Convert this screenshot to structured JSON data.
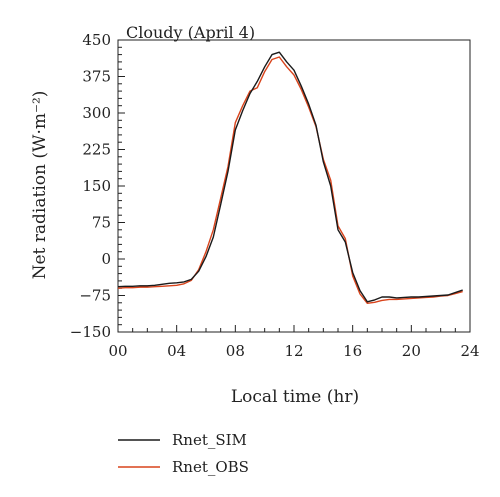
{
  "chart_data": {
    "type": "line",
    "title": "Cloudy (April 4)",
    "xlabel": "Local time (hr)",
    "ylabel": "Net radiation (W·m⁻²)",
    "xlim": [
      0,
      24
    ],
    "ylim": [
      -150,
      450
    ],
    "xticks": [
      0,
      4,
      8,
      12,
      16,
      20,
      24
    ],
    "xtick_labels": [
      "00",
      "04",
      "08",
      "12",
      "16",
      "20",
      "24"
    ],
    "yticks": [
      -150,
      -75,
      0,
      75,
      150,
      225,
      300,
      375,
      450
    ],
    "ytick_labels": [
      "−150",
      "−75",
      "0",
      "75",
      "150",
      "225",
      "300",
      "375",
      "450"
    ],
    "grid": false,
    "legend_position": "bottom-left",
    "x": [
      0,
      0.5,
      1,
      1.5,
      2,
      2.5,
      3,
      3.5,
      4,
      4.5,
      5,
      5.5,
      6,
      6.5,
      7,
      7.5,
      8,
      8.5,
      9,
      9.5,
      10,
      10.5,
      11,
      11.5,
      12,
      12.5,
      13,
      13.5,
      14,
      14.5,
      15,
      15.5,
      16,
      16.5,
      17,
      17.5,
      18,
      18.5,
      19,
      19.5,
      20,
      20.5,
      21,
      21.5,
      22,
      22.5,
      23,
      23.5
    ],
    "series": [
      {
        "name": "Rnet_SIM",
        "color": "#1a1a1a",
        "values": [
          -57,
          -56,
          -56,
          -55,
          -55,
          -54,
          -52,
          -50,
          -49,
          -47,
          -42,
          -25,
          5,
          45,
          112,
          180,
          265,
          305,
          340,
          365,
          395,
          420,
          425,
          405,
          388,
          355,
          318,
          275,
          200,
          150,
          60,
          35,
          -28,
          -65,
          -88,
          -84,
          -78,
          -78,
          -80,
          -79,
          -78,
          -78,
          -77,
          -76,
          -75,
          -74,
          -69,
          -64
        ]
      },
      {
        "name": "Rnet_OBS",
        "color": "#d9441c",
        "values": [
          -60,
          -59,
          -59,
          -58,
          -58,
          -57,
          -56,
          -55,
          -54,
          -51,
          -44,
          -22,
          15,
          60,
          125,
          190,
          280,
          315,
          345,
          352,
          385,
          410,
          415,
          395,
          378,
          348,
          312,
          272,
          205,
          162,
          68,
          42,
          -35,
          -72,
          -91,
          -89,
          -85,
          -83,
          -83,
          -82,
          -81,
          -80,
          -79,
          -78,
          -76,
          -75,
          -71,
          -67
        ]
      }
    ]
  }
}
